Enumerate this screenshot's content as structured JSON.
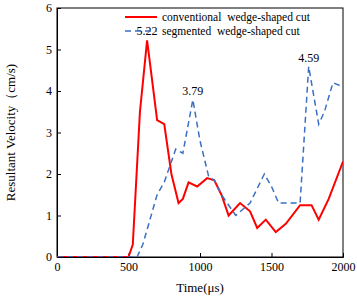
{
  "chart_data": {
    "type": "line",
    "x_label": "Time(μs)",
    "y_label": "Resultant Velocity（cm/s)",
    "xlim": [
      0,
      2000
    ],
    "xticks": [
      0,
      500,
      1000,
      1500,
      2000
    ],
    "ylim": [
      0,
      6
    ],
    "yticks": [
      0,
      1,
      2,
      3,
      4,
      5,
      6
    ],
    "legend": "upper right",
    "series": [
      {
        "name": "conventional  wedge-shaped cut",
        "color": "#ff0000",
        "line_style": "solid",
        "x": [
          0,
          500,
          530,
          580,
          630,
          660,
          700,
          750,
          800,
          850,
          880,
          920,
          980,
          1050,
          1100,
          1150,
          1200,
          1280,
          1350,
          1400,
          1460,
          1530,
          1600,
          1700,
          1780,
          1830,
          1900,
          2000
        ],
        "values": [
          0,
          0,
          0.3,
          3.5,
          5.22,
          4.4,
          3.3,
          3.2,
          2.0,
          1.3,
          1.4,
          1.8,
          1.7,
          1.9,
          1.85,
          1.5,
          1.0,
          1.3,
          1.1,
          0.7,
          0.9,
          0.6,
          0.8,
          1.25,
          1.25,
          0.9,
          1.4,
          2.3
        ]
      },
      {
        "name": "segmented  wedge-shaped cut",
        "color": "#3a6fc4",
        "line_style": "dashed",
        "x": [
          0,
          560,
          600,
          700,
          750,
          830,
          880,
          950,
          1000,
          1060,
          1100,
          1150,
          1250,
          1350,
          1450,
          1500,
          1550,
          1700,
          1760,
          1830,
          1870,
          1930,
          2000
        ],
        "values": [
          0,
          0,
          0.3,
          1.5,
          1.8,
          2.6,
          2.5,
          3.79,
          2.8,
          1.95,
          1.85,
          1.5,
          1.0,
          1.3,
          2.0,
          1.7,
          1.3,
          1.3,
          4.59,
          3.2,
          3.5,
          4.2,
          4.1
        ]
      }
    ],
    "annotations": [
      {
        "text": "5.22",
        "x": 630,
        "y": 5.22
      },
      {
        "text": "3.79",
        "x": 950,
        "y": 3.79
      },
      {
        "text": "4.59",
        "x": 1760,
        "y": 4.59
      }
    ]
  }
}
